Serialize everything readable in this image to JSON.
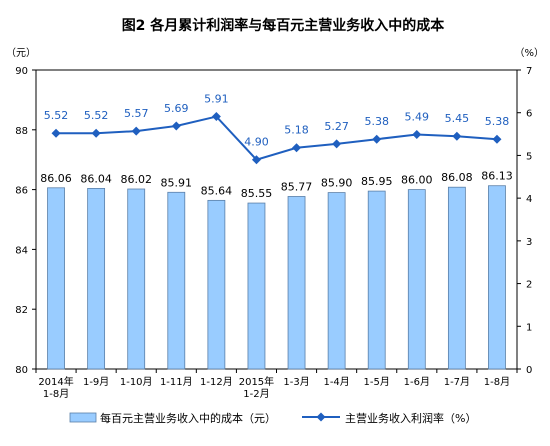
{
  "chart_data": {
    "type": "bar+line",
    "title": "图2  各月累计利润率与每百元主营业务收入中的成本",
    "left_unit": "（元）",
    "right_unit": "（%）",
    "categories": [
      [
        "2014年",
        "1-8月"
      ],
      [
        "1-9月"
      ],
      [
        "1-10月"
      ],
      [
        "1-11月"
      ],
      [
        "1-12月"
      ],
      [
        "2015年",
        "1-2月"
      ],
      [
        "1-3月"
      ],
      [
        "1-4月"
      ],
      [
        "1-5月"
      ],
      [
        "1-6月"
      ],
      [
        "1-7月"
      ],
      [
        "1-8月"
      ]
    ],
    "series": [
      {
        "name": "每百元主营业务收入中的成本（元）",
        "type": "bar",
        "axis": "left",
        "color": "#99ccff",
        "values": [
          86.06,
          86.04,
          86.02,
          85.91,
          85.64,
          85.55,
          85.77,
          85.9,
          85.95,
          86.0,
          86.08,
          86.13
        ],
        "labels": [
          "86.06",
          "86.04",
          "86.02",
          "85.91",
          "85.64",
          "85.55",
          "85.77",
          "85.90",
          "85.95",
          "86.00",
          "86.08",
          "86.13"
        ]
      },
      {
        "name": "主营业务收入利润率（%）",
        "type": "line",
        "axis": "right",
        "color": "#1f5fbf",
        "values": [
          5.52,
          5.52,
          5.57,
          5.69,
          5.91,
          4.9,
          5.18,
          5.27,
          5.38,
          5.49,
          5.45,
          5.38
        ],
        "labels": [
          "5.52",
          "5.52",
          "5.57",
          "5.69",
          "5.91",
          "4.90",
          "5.18",
          "5.27",
          "5.38",
          "5.49",
          "5.45",
          "5.38"
        ]
      }
    ],
    "y_left": {
      "min": 80,
      "max": 90,
      "ticks": [
        80,
        82,
        84,
        86,
        88,
        90
      ]
    },
    "y_right": {
      "min": 0,
      "max": 7,
      "ticks": [
        0,
        1,
        2,
        3,
        4,
        5,
        6,
        7
      ]
    },
    "grid": false,
    "legend_position": "bottom"
  }
}
